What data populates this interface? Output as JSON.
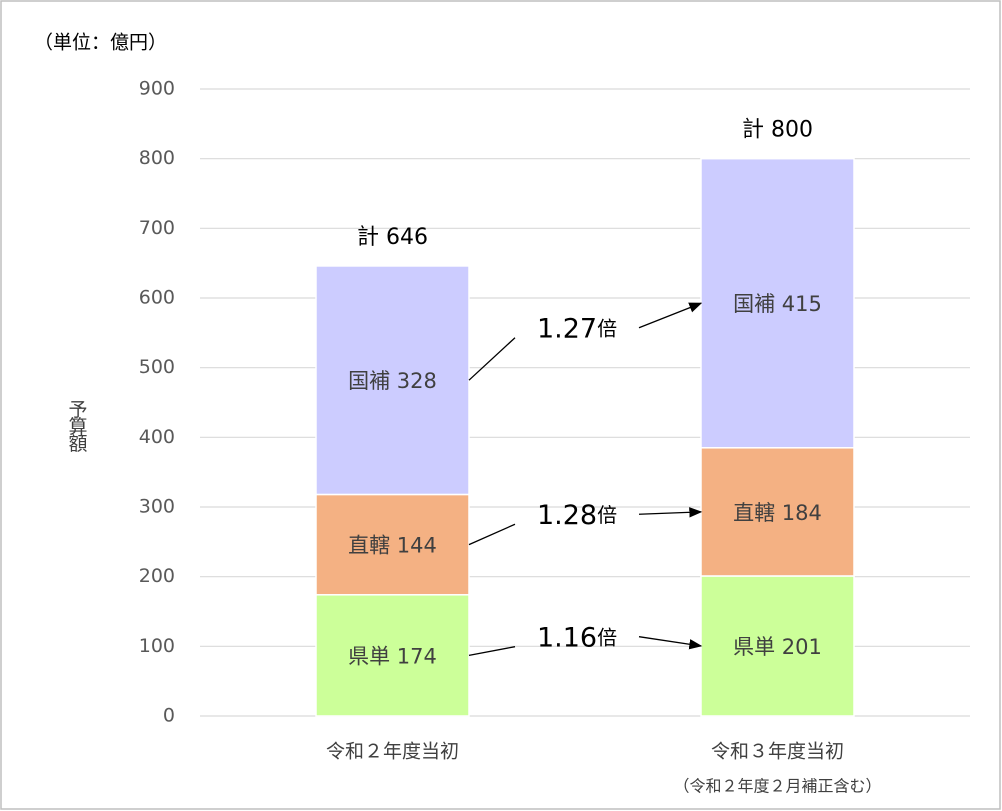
{
  "chart_data": {
    "type": "stacked_bar",
    "unit_label": "（単位：億円）",
    "y_label": "予算額",
    "categories": [
      "令和２年度当初",
      "令和３年度当初"
    ],
    "x_note": "（令和２年度２月補正含む）",
    "series": [
      {
        "name": "県単",
        "color": "#ccff99",
        "values": [
          174,
          201
        ],
        "value_labels": [
          "県単 174",
          "県単 201"
        ]
      },
      {
        "name": "直轄",
        "color": "#f4b183",
        "values": [
          144,
          184
        ],
        "value_labels": [
          "直轄 144",
          "直轄 184"
        ]
      },
      {
        "name": "国補",
        "color": "#ccccff",
        "values": [
          328,
          415
        ],
        "value_labels": [
          "国補 328",
          "国補 415"
        ]
      }
    ],
    "totals": {
      "values": [
        646,
        800
      ],
      "value_labels": [
        "計 646",
        "計 800"
      ]
    },
    "ratios": [
      {
        "value": 1.16,
        "unit": "倍"
      },
      {
        "value": 1.28,
        "unit": "倍"
      },
      {
        "value": 1.27,
        "unit": "倍"
      }
    ],
    "ylim": [
      0,
      900
    ],
    "yticks": [
      0,
      100,
      200,
      300,
      400,
      500,
      600,
      700,
      800,
      900
    ],
    "grid": true
  }
}
